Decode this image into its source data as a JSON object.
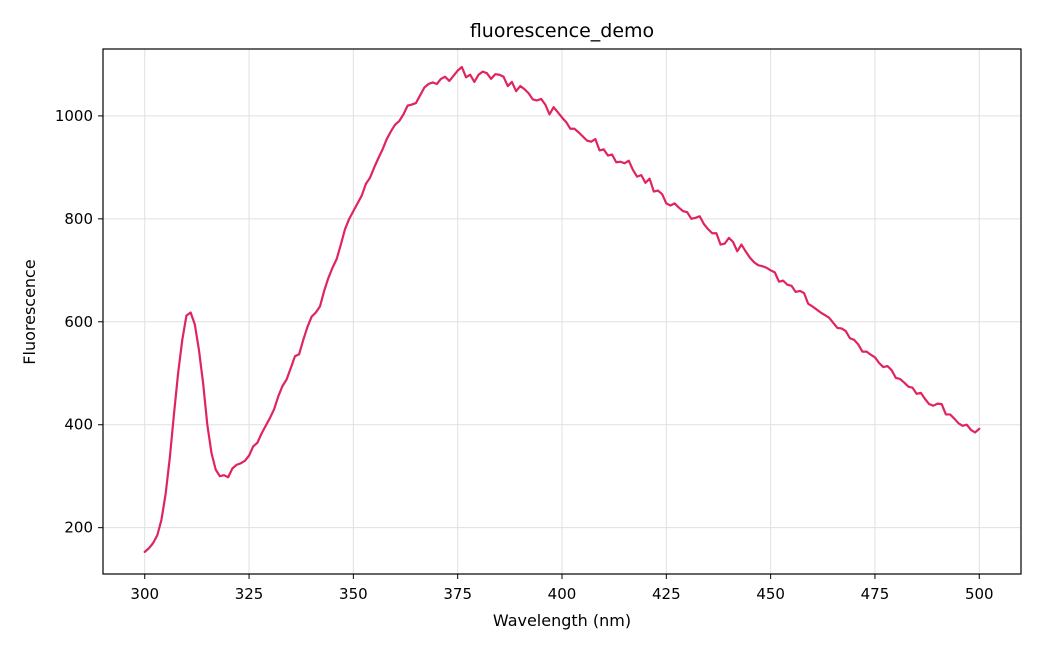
{
  "chart_data": {
    "type": "line",
    "title": "fluorescence_demo",
    "xlabel": "Wavelength (nm)",
    "ylabel": "Fluorescence",
    "xlim": [
      290,
      510
    ],
    "ylim": [
      110,
      1130
    ],
    "grid": true,
    "x_ticks": [
      300,
      325,
      350,
      375,
      400,
      425,
      450,
      475,
      500
    ],
    "y_ticks": [
      200,
      400,
      600,
      800,
      1000
    ],
    "series": [
      {
        "color": "#e0245e",
        "x": [
          300,
          301,
          302,
          303,
          304,
          305,
          306,
          307,
          308,
          309,
          310,
          311,
          312,
          313,
          314,
          315,
          316,
          317,
          318,
          319,
          320,
          321,
          322,
          323,
          324,
          325,
          326,
          327,
          328,
          329,
          330,
          331,
          332,
          333,
          334,
          335,
          336,
          337,
          338,
          339,
          340,
          341,
          342,
          343,
          344,
          345,
          346,
          347,
          348,
          349,
          350,
          351,
          352,
          353,
          354,
          355,
          356,
          357,
          358,
          359,
          360,
          361,
          362,
          363,
          364,
          365,
          366,
          367,
          368,
          369,
          370,
          371,
          372,
          373,
          374,
          375,
          376,
          377,
          378,
          379,
          380,
          381,
          382,
          383,
          384,
          385,
          386,
          387,
          388,
          389,
          390,
          391,
          392,
          393,
          394,
          395,
          396,
          397,
          398,
          399,
          400,
          401,
          402,
          403,
          404,
          405,
          406,
          407,
          408,
          409,
          410,
          411,
          412,
          413,
          414,
          415,
          416,
          417,
          418,
          419,
          420,
          421,
          422,
          423,
          424,
          425,
          426,
          427,
          428,
          429,
          430,
          431,
          432,
          433,
          434,
          435,
          436,
          437,
          438,
          439,
          440,
          441,
          442,
          443,
          444,
          445,
          446,
          447,
          448,
          449,
          450,
          451,
          452,
          453,
          454,
          455,
          456,
          457,
          458,
          459,
          460,
          461,
          462,
          463,
          464,
          465,
          466,
          467,
          468,
          469,
          470,
          471,
          472,
          473,
          474,
          475,
          476,
          477,
          478,
          479,
          480,
          481,
          482,
          483,
          484,
          485,
          486,
          487,
          488,
          489,
          490,
          491,
          492,
          493,
          494,
          495,
          496,
          497,
          498,
          499,
          500
        ],
        "y": [
          153,
          160,
          170,
          185,
          215,
          265,
          335,
          420,
          500,
          565,
          612,
          618,
          595,
          545,
          480,
          400,
          345,
          313,
          300,
          302,
          298,
          315,
          322,
          325,
          330,
          340,
          358,
          365,
          383,
          398,
          413,
          430,
          455,
          475,
          488,
          510,
          533,
          537,
          565,
          590,
          610,
          618,
          630,
          660,
          685,
          705,
          722,
          750,
          780,
          800,
          815,
          830,
          845,
          868,
          880,
          900,
          918,
          935,
          955,
          970,
          983,
          990,
          1003,
          1020,
          1022,
          1025,
          1040,
          1055,
          1062,
          1065,
          1062,
          1072,
          1076,
          1068,
          1078,
          1088,
          1095,
          1075,
          1080,
          1066,
          1080,
          1086,
          1083,
          1072,
          1081,
          1080,
          1076,
          1058,
          1066,
          1048,
          1058,
          1052,
          1044,
          1032,
          1030,
          1033,
          1022,
          1003,
          1017,
          1007,
          997,
          988,
          975,
          975,
          968,
          960,
          952,
          950,
          955,
          933,
          935,
          923,
          925,
          910,
          911,
          908,
          913,
          895,
          882,
          885,
          870,
          878,
          853,
          855,
          848,
          830,
          826,
          830,
          822,
          815,
          813,
          800,
          802,
          805,
          790,
          780,
          772,
          772,
          750,
          752,
          763,
          755,
          737,
          750,
          737,
          725,
          716,
          710,
          708,
          705,
          700,
          696,
          678,
          680,
          672,
          670,
          658,
          660,
          656,
          635,
          630,
          624,
          618,
          613,
          608,
          598,
          588,
          587,
          582,
          568,
          565,
          556,
          542,
          542,
          536,
          531,
          520,
          512,
          514,
          506,
          491,
          489,
          482,
          474,
          472,
          460,
          462,
          450,
          440,
          437,
          441,
          440,
          420,
          420,
          412,
          403,
          398,
          400,
          390,
          385,
          392
        ]
      }
    ]
  }
}
